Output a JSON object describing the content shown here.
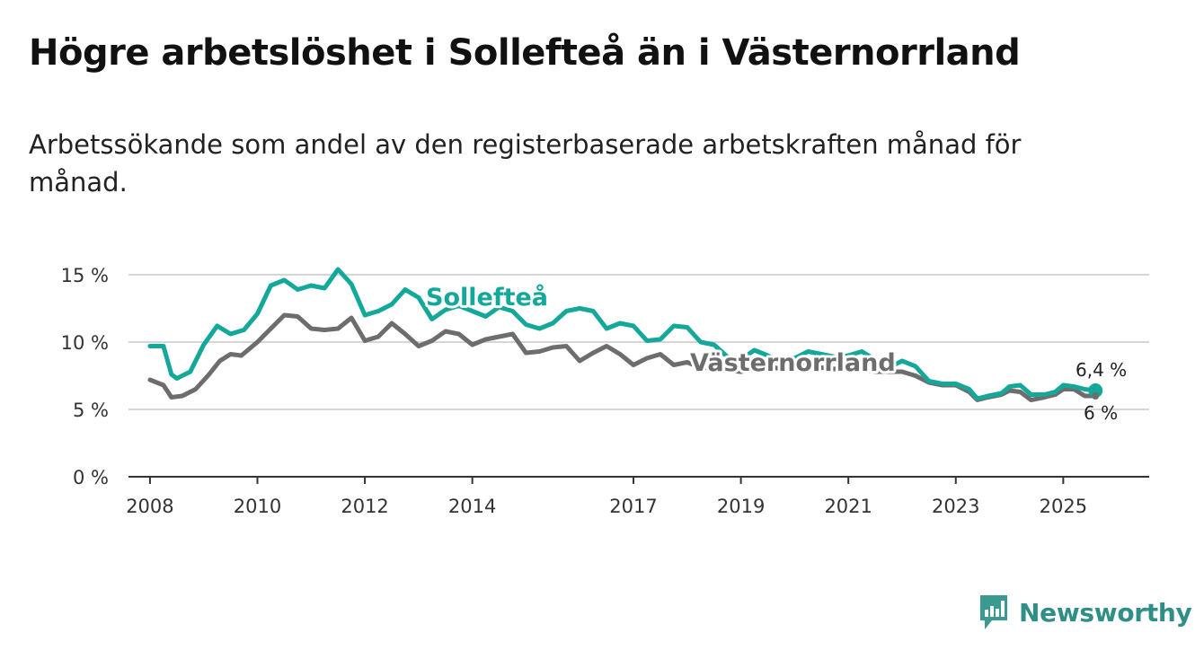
{
  "title": "Högre arbetslöshet i Sollefteå än i Västernorrland",
  "subtitle": "Arbetssökande som andel av den registerbaserade arbetskraften månad för månad.",
  "brand": {
    "name": "Newsworthy",
    "icon": "newsworthy-logo-icon"
  },
  "colors": {
    "solleftea": "#13a89a",
    "vasternorrland": "#6d6d6d",
    "grid": "#d6d6d6",
    "axis": "#333333"
  },
  "chart_data": {
    "type": "line",
    "title": "Högre arbetslöshet i Sollefteå än i Västernorrland",
    "xlabel": "",
    "ylabel": "",
    "xlim": [
      2007.6,
      2026.6
    ],
    "ylim": [
      0,
      15
    ],
    "y_ticks": [
      0,
      5,
      10,
      15
    ],
    "y_tick_labels": [
      "0 %",
      "5 %",
      "10 %",
      "15 %"
    ],
    "x_ticks": [
      2008,
      2010,
      2012,
      2014,
      2017,
      2019,
      2021,
      2023,
      2025
    ],
    "x_tick_labels": [
      "2008",
      "2010",
      "2012",
      "2014",
      "2017",
      "2019",
      "2021",
      "2023",
      "2025"
    ],
    "end_labels": {
      "solleftea": "6,4 %",
      "vasternorrland": "6 %"
    },
    "series": [
      {
        "name": "Sollefteå",
        "key": "solleftea",
        "points": [
          [
            2008.0,
            9.7
          ],
          [
            2008.25,
            9.7
          ],
          [
            2008.4,
            7.6
          ],
          [
            2008.5,
            7.3
          ],
          [
            2008.75,
            7.8
          ],
          [
            2009.0,
            9.8
          ],
          [
            2009.25,
            11.2
          ],
          [
            2009.5,
            10.6
          ],
          [
            2009.75,
            10.9
          ],
          [
            2010.0,
            12.1
          ],
          [
            2010.25,
            14.2
          ],
          [
            2010.5,
            14.6
          ],
          [
            2010.75,
            13.9
          ],
          [
            2011.0,
            14.2
          ],
          [
            2011.25,
            14.0
          ],
          [
            2011.5,
            15.4
          ],
          [
            2011.75,
            14.3
          ],
          [
            2012.0,
            12.0
          ],
          [
            2012.25,
            12.3
          ],
          [
            2012.5,
            12.8
          ],
          [
            2012.75,
            13.9
          ],
          [
            2013.0,
            13.3
          ],
          [
            2013.25,
            11.7
          ],
          [
            2013.5,
            12.4
          ],
          [
            2013.75,
            12.7
          ],
          [
            2014.0,
            12.3
          ],
          [
            2014.25,
            11.9
          ],
          [
            2014.5,
            12.6
          ],
          [
            2014.75,
            12.3
          ],
          [
            2015.0,
            11.3
          ],
          [
            2015.25,
            11.0
          ],
          [
            2015.5,
            11.4
          ],
          [
            2015.75,
            12.3
          ],
          [
            2016.0,
            12.5
          ],
          [
            2016.25,
            12.3
          ],
          [
            2016.5,
            11.0
          ],
          [
            2016.75,
            11.4
          ],
          [
            2017.0,
            11.2
          ],
          [
            2017.25,
            10.1
          ],
          [
            2017.5,
            10.2
          ],
          [
            2017.75,
            11.2
          ],
          [
            2018.0,
            11.1
          ],
          [
            2018.25,
            10.0
          ],
          [
            2018.5,
            9.8
          ],
          [
            2018.75,
            8.9
          ],
          [
            2019.0,
            8.7
          ],
          [
            2019.25,
            9.4
          ],
          [
            2019.5,
            9.0
          ],
          [
            2019.75,
            8.5
          ],
          [
            2020.0,
            8.8
          ],
          [
            2020.25,
            9.3
          ],
          [
            2020.5,
            9.1
          ],
          [
            2020.75,
            8.9
          ],
          [
            2021.0,
            9.0
          ],
          [
            2021.25,
            9.3
          ],
          [
            2021.5,
            8.7
          ],
          [
            2021.75,
            8.1
          ],
          [
            2022.0,
            8.6
          ],
          [
            2022.25,
            8.2
          ],
          [
            2022.5,
            7.1
          ],
          [
            2022.75,
            6.9
          ],
          [
            2023.0,
            6.9
          ],
          [
            2023.25,
            6.5
          ],
          [
            2023.4,
            5.8
          ],
          [
            2023.6,
            6.0
          ],
          [
            2023.85,
            6.2
          ],
          [
            2024.0,
            6.7
          ],
          [
            2024.2,
            6.8
          ],
          [
            2024.4,
            6.1
          ],
          [
            2024.65,
            6.1
          ],
          [
            2024.85,
            6.3
          ],
          [
            2025.0,
            6.8
          ],
          [
            2025.2,
            6.7
          ],
          [
            2025.4,
            6.5
          ],
          [
            2025.6,
            6.4
          ]
        ]
      },
      {
        "name": "Västernorrland",
        "key": "vasternorrland",
        "points": [
          [
            2008.0,
            7.2
          ],
          [
            2008.25,
            6.8
          ],
          [
            2008.4,
            5.9
          ],
          [
            2008.6,
            6.0
          ],
          [
            2008.85,
            6.5
          ],
          [
            2009.1,
            7.6
          ],
          [
            2009.3,
            8.6
          ],
          [
            2009.5,
            9.1
          ],
          [
            2009.7,
            9.0
          ],
          [
            2010.0,
            10.0
          ],
          [
            2010.25,
            11.0
          ],
          [
            2010.5,
            12.0
          ],
          [
            2010.75,
            11.9
          ],
          [
            2011.0,
            11.0
          ],
          [
            2011.25,
            10.9
          ],
          [
            2011.5,
            11.0
          ],
          [
            2011.75,
            11.8
          ],
          [
            2012.0,
            10.1
          ],
          [
            2012.25,
            10.4
          ],
          [
            2012.5,
            11.4
          ],
          [
            2012.75,
            10.6
          ],
          [
            2013.0,
            9.7
          ],
          [
            2013.25,
            10.1
          ],
          [
            2013.5,
            10.8
          ],
          [
            2013.75,
            10.6
          ],
          [
            2014.0,
            9.8
          ],
          [
            2014.25,
            10.2
          ],
          [
            2014.5,
            10.4
          ],
          [
            2014.75,
            10.6
          ],
          [
            2015.0,
            9.2
          ],
          [
            2015.25,
            9.3
          ],
          [
            2015.5,
            9.6
          ],
          [
            2015.75,
            9.7
          ],
          [
            2016.0,
            8.6
          ],
          [
            2016.25,
            9.2
          ],
          [
            2016.5,
            9.7
          ],
          [
            2016.75,
            9.1
          ],
          [
            2017.0,
            8.3
          ],
          [
            2017.25,
            8.8
          ],
          [
            2017.5,
            9.1
          ],
          [
            2017.75,
            8.3
          ],
          [
            2018.0,
            8.5
          ],
          [
            2018.25,
            8.1
          ],
          [
            2018.5,
            8.1
          ],
          [
            2018.75,
            7.9
          ],
          [
            2019.0,
            7.8
          ],
          [
            2019.25,
            8.0
          ],
          [
            2019.5,
            8.2
          ],
          [
            2019.75,
            8.0
          ],
          [
            2020.0,
            8.1
          ],
          [
            2020.25,
            8.3
          ],
          [
            2020.5,
            8.1
          ],
          [
            2020.75,
            8.0
          ],
          [
            2021.0,
            8.2
          ],
          [
            2021.25,
            8.0
          ],
          [
            2021.5,
            7.8
          ],
          [
            2021.75,
            7.8
          ],
          [
            2022.0,
            7.8
          ],
          [
            2022.25,
            7.5
          ],
          [
            2022.5,
            7.0
          ],
          [
            2022.75,
            6.8
          ],
          [
            2023.0,
            6.8
          ],
          [
            2023.25,
            6.3
          ],
          [
            2023.4,
            5.7
          ],
          [
            2023.6,
            5.9
          ],
          [
            2023.85,
            6.1
          ],
          [
            2024.0,
            6.4
          ],
          [
            2024.2,
            6.3
          ],
          [
            2024.4,
            5.7
          ],
          [
            2024.65,
            5.9
          ],
          [
            2024.85,
            6.1
          ],
          [
            2025.0,
            6.5
          ],
          [
            2025.2,
            6.5
          ],
          [
            2025.4,
            6.0
          ],
          [
            2025.6,
            6.0
          ]
        ]
      }
    ]
  }
}
